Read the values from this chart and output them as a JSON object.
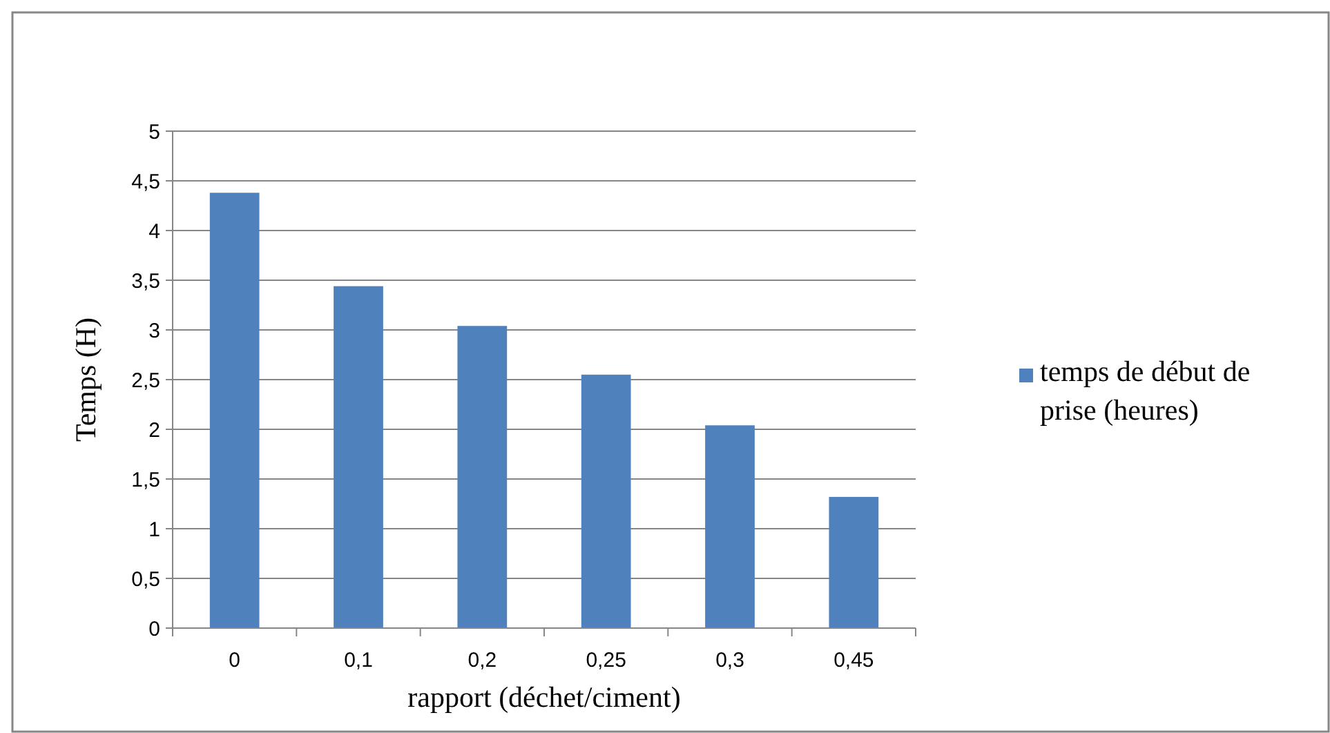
{
  "chart_data": {
    "type": "bar",
    "xlabel": "rapport (déchet/ciment)",
    "ylabel": "Temps (H)",
    "categories": [
      "0",
      "0,1",
      "0,2",
      "0,25",
      "0,3",
      "0,45"
    ],
    "series": [
      {
        "name": "temps de début de prise (heures)",
        "color": "#4f81bd",
        "values": [
          4.38,
          3.44,
          3.04,
          2.55,
          2.04,
          1.32
        ]
      }
    ],
    "ylim": [
      0,
      5
    ],
    "yticks": [
      0,
      {
        "value": 0.5,
        "label": "0,5"
      },
      1,
      {
        "value": 1.5,
        "label": "1,5"
      },
      2,
      {
        "value": 2.5,
        "label": "2,5"
      },
      3,
      {
        "value": 3.5,
        "label": "3,5"
      },
      4,
      {
        "value": 4.5,
        "label": "4,5"
      },
      5
    ],
    "grid": "y",
    "legend": "right"
  }
}
